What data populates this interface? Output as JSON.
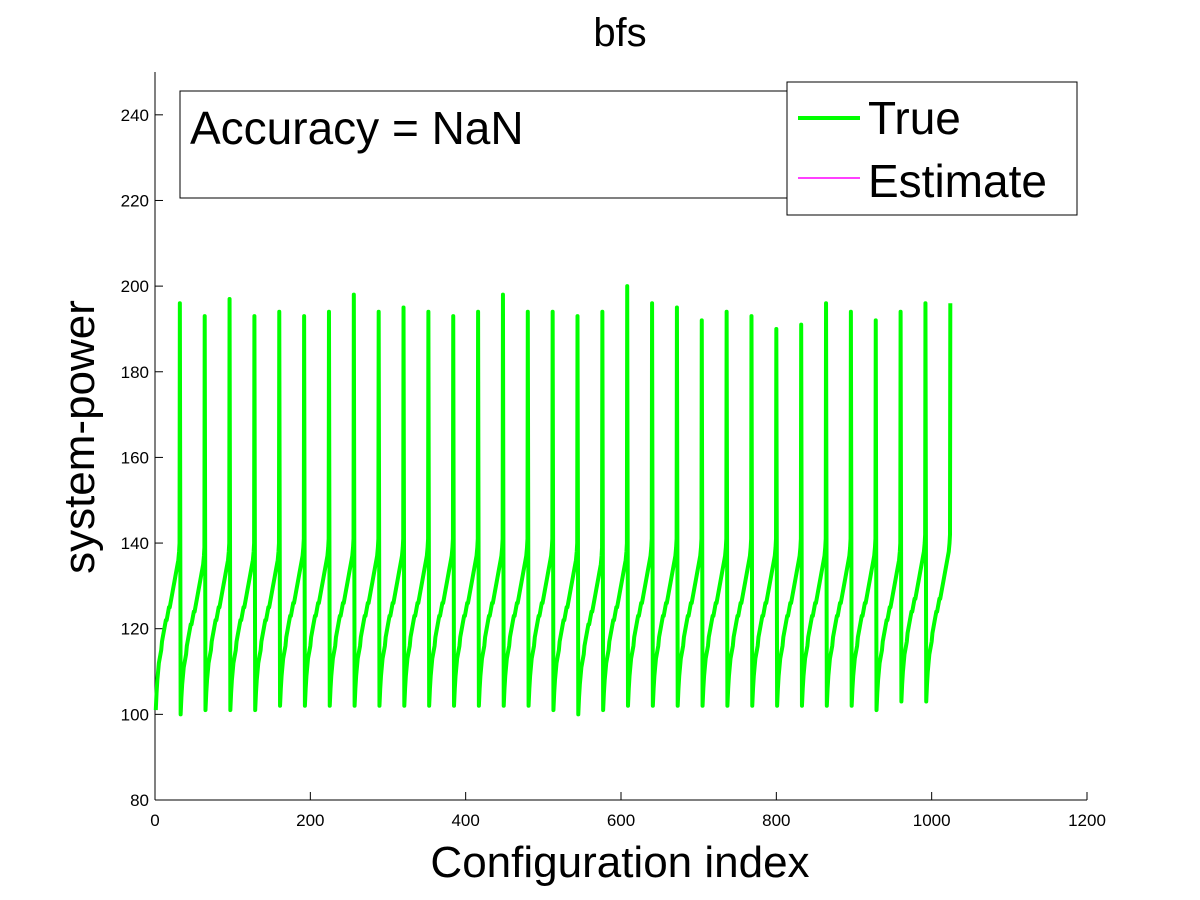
{
  "chart_data": {
    "type": "line",
    "title": "bfs",
    "xlabel": "Configuration index",
    "ylabel": "system-power",
    "xlim": [
      0,
      1200
    ],
    "ylim": [
      80,
      250
    ],
    "xticks": [
      0,
      200,
      400,
      600,
      800,
      1000,
      1200
    ],
    "yticks": [
      80,
      100,
      120,
      140,
      160,
      180,
      200,
      220,
      240
    ],
    "grid": false,
    "legend_position": "top-right",
    "annotation": "Accuracy =  NaN",
    "series": [
      {
        "name": "True",
        "color": "#00ff00",
        "period": 32,
        "cycles": 32,
        "cycle_shape": [
          101,
          105,
          108,
          110,
          112,
          113,
          114,
          115,
          117,
          118,
          119,
          120,
          121,
          122,
          122,
          123,
          124,
          125,
          125,
          126,
          127,
          128,
          129,
          130,
          131,
          132,
          133,
          134,
          135,
          136,
          138,
          140
        ],
        "cycle_min": [
          101,
          100,
          101,
          101,
          101,
          102,
          102,
          102,
          102,
          102,
          102,
          102,
          102,
          102,
          102,
          102,
          101,
          100,
          101,
          102,
          102,
          102,
          102,
          102,
          102,
          102,
          102,
          102,
          102,
          101,
          103,
          103
        ],
        "spike_peaks": [
          196,
          193,
          197,
          193,
          194,
          193,
          194,
          198,
          194,
          195,
          194,
          193,
          194,
          198,
          194,
          194,
          193,
          194,
          200,
          196,
          195,
          192,
          194,
          193,
          190,
          191,
          196,
          194,
          192,
          194,
          196,
          196
        ]
      },
      {
        "name": "Estimate",
        "color": "#ff00ff",
        "values": []
      }
    ]
  }
}
